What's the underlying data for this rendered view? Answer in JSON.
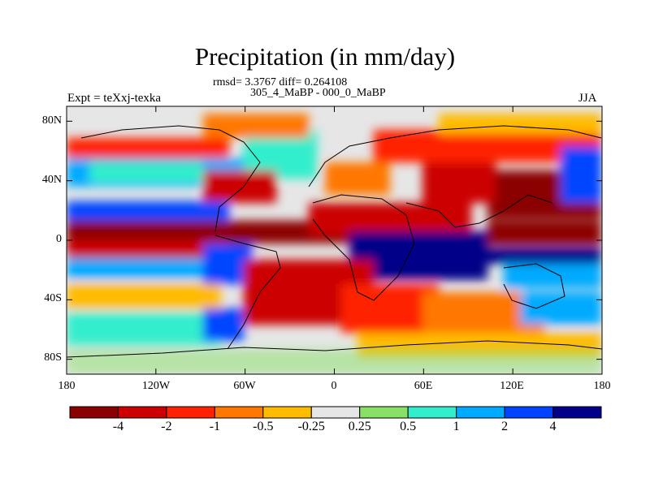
{
  "title": "Precipitation (in mm/day)",
  "stats_line": "rmsd= 3.3767 diff= 0.264108",
  "case_line": "305_4_MaBP - 000_0_MaBP",
  "expt_label": "Expt = teXxj-texka",
  "season": "JJA",
  "map": {
    "lat_range": [
      -90,
      90
    ],
    "lon_range": [
      -180,
      180
    ],
    "lat_ticks": [
      "80N",
      "40N",
      "0",
      "40S",
      "80S"
    ],
    "lon_ticks": [
      "180",
      "120W",
      "60W",
      "0",
      "60E",
      "120E",
      "180"
    ]
  },
  "colorbar": {
    "colors": [
      "#8b0000",
      "#cc0000",
      "#ff2200",
      "#ff7700",
      "#ffbb00",
      "#e6e6e6",
      "#88e066",
      "#33eecc",
      "#00aaff",
      "#0044ff",
      "#000088"
    ],
    "labels": [
      "-4",
      "-2",
      "-1",
      "-0.5",
      "-0.25",
      "0.25",
      "0.5",
      "1",
      "2",
      "4"
    ]
  }
}
